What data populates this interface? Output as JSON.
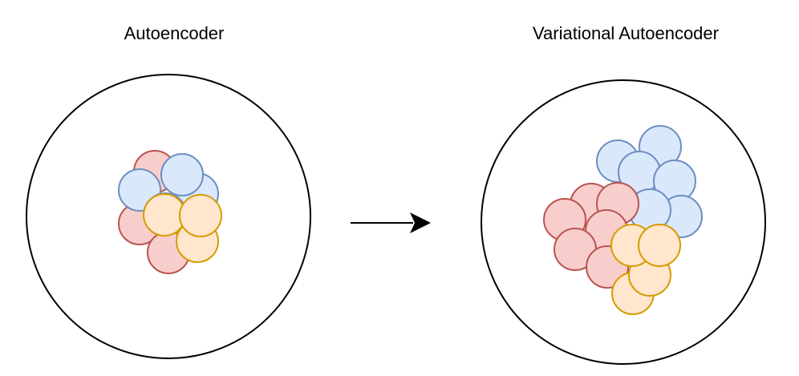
{
  "panels": [
    {
      "title": "Autoencoder",
      "circles": [
        {
          "group": "red"
        },
        {
          "group": "red"
        },
        {
          "group": "red"
        },
        {
          "group": "blue"
        },
        {
          "group": "blue"
        },
        {
          "group": "blue"
        },
        {
          "group": "blue"
        },
        {
          "group": "yellow"
        },
        {
          "group": "yellow"
        },
        {
          "group": "yellow"
        }
      ]
    },
    {
      "title": "Variational Autoencoder",
      "circles": [
        {
          "group": "blue"
        },
        {
          "group": "blue"
        },
        {
          "group": "blue"
        },
        {
          "group": "blue"
        },
        {
          "group": "blue"
        },
        {
          "group": "blue"
        },
        {
          "group": "red"
        },
        {
          "group": "red"
        },
        {
          "group": "red"
        },
        {
          "group": "red"
        },
        {
          "group": "red"
        },
        {
          "group": "red"
        },
        {
          "group": "yellow"
        },
        {
          "group": "yellow"
        },
        {
          "group": "yellow"
        },
        {
          "group": "yellow"
        }
      ]
    }
  ],
  "colors": {
    "red": {
      "fill": "#f8cecc",
      "stroke": "#b85450"
    },
    "blue": {
      "fill": "#dae8fc",
      "stroke": "#6c8ebf"
    },
    "yellow": {
      "fill": "#ffe6cc",
      "stroke": "#d79b00"
    },
    "outline": "#000000"
  },
  "arrow": {
    "icon": "arrow-right-icon"
  }
}
